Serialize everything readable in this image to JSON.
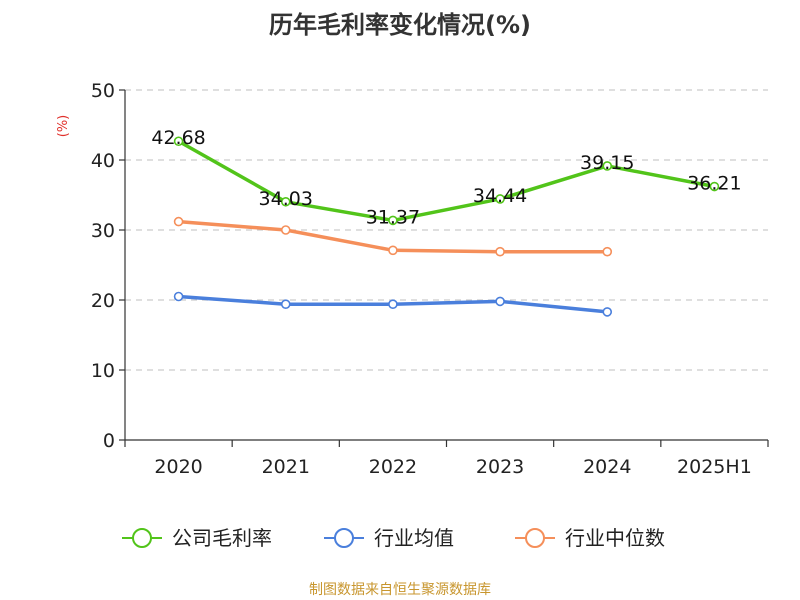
{
  "chart_data": {
    "type": "line",
    "title": "历年毛利率变化情况(%)",
    "unit": "(%)",
    "categories": [
      "2020",
      "2021",
      "2022",
      "2023",
      "2024",
      "2025H1"
    ],
    "ylim": [
      0,
      50
    ],
    "yticks": [
      0,
      10,
      20,
      30,
      40,
      50
    ],
    "grid": true,
    "legend_position": "bottom",
    "series": [
      {
        "name": "公司毛利率",
        "color": "#52c41a",
        "values": [
          42.68,
          34.03,
          31.37,
          34.44,
          39.15,
          36.21
        ],
        "labels": [
          "42.68",
          "34.03",
          "31.37",
          "34.44",
          "39.15",
          "36.21"
        ]
      },
      {
        "name": "行业均值",
        "color": "#4a7fdc",
        "values": [
          20.5,
          19.4,
          19.4,
          19.8,
          18.3,
          null
        ]
      },
      {
        "name": "行业中位数",
        "color": "#f58f5a",
        "values": [
          31.2,
          30.0,
          27.1,
          26.9,
          26.9,
          null
        ]
      }
    ],
    "source": "制图数据来自恒生聚源数据库",
    "colors": {
      "unit": "#e0302b",
      "source": "#c8962e",
      "axis": "#333333",
      "grid": "#cccccc"
    }
  }
}
